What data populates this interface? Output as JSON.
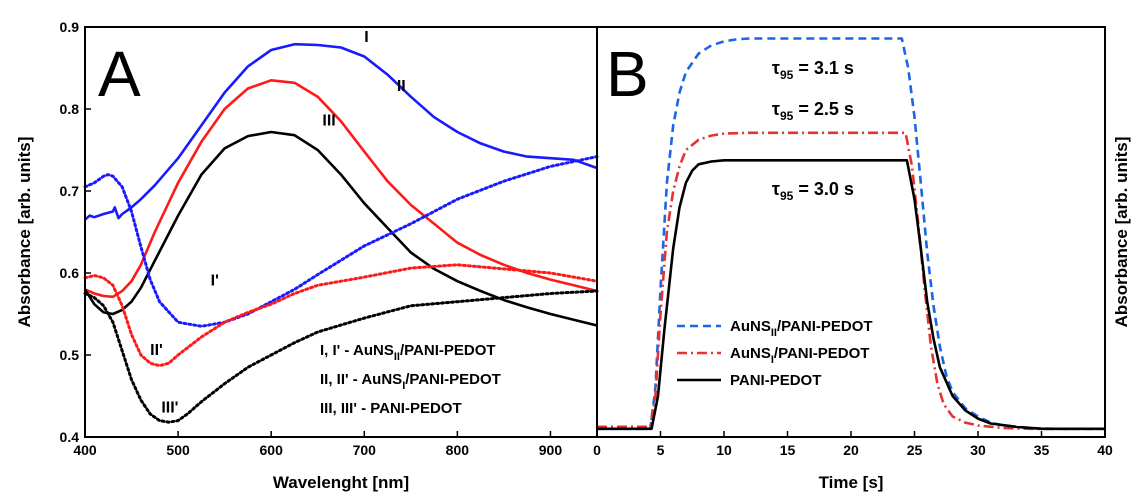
{
  "chart_data": [
    {
      "panel": "A",
      "type": "line",
      "xlabel": "Wavelenght [nm]",
      "ylabel": "Absorbance [arb. units]",
      "xlim": [
        400,
        950
      ],
      "ylim": [
        0.4,
        0.9
      ],
      "xticks": [
        400,
        500,
        600,
        700,
        800,
        900
      ],
      "yticks": [
        0.4,
        0.5,
        0.6,
        0.7,
        0.8,
        0.9
      ],
      "legend": [
        {
          "prefix": "I, I' - AuNS",
          "sub": "II",
          "suffix": "/PANI-PEDOT"
        },
        {
          "prefix": "II, II' - AuNS",
          "sub": "I",
          "suffix": "/PANI-PEDOT"
        },
        {
          "prefix": "III, III' - PANI-PEDOT",
          "sub": "",
          "suffix": ""
        }
      ],
      "series": [
        {
          "name": "I",
          "color": "#1a1aff",
          "style": "solid",
          "x": [
            400,
            405,
            410,
            420,
            430,
            432,
            436,
            440,
            450,
            460,
            475,
            500,
            525,
            550,
            575,
            600,
            625,
            650,
            675,
            700,
            725,
            750,
            775,
            800,
            825,
            850,
            875,
            900,
            925,
            950
          ],
          "y": [
            0.665,
            0.67,
            0.668,
            0.672,
            0.675,
            0.68,
            0.667,
            0.672,
            0.68,
            0.69,
            0.707,
            0.74,
            0.78,
            0.82,
            0.852,
            0.872,
            0.879,
            0.878,
            0.875,
            0.864,
            0.842,
            0.815,
            0.79,
            0.772,
            0.758,
            0.748,
            0.742,
            0.74,
            0.738,
            0.728
          ]
        },
        {
          "name": "II",
          "color": "#ff1a1a",
          "style": "solid",
          "x": [
            400,
            410,
            420,
            430,
            440,
            450,
            460,
            475,
            500,
            525,
            550,
            575,
            600,
            625,
            650,
            675,
            700,
            725,
            750,
            775,
            800,
            825,
            850,
            875,
            900,
            925,
            950
          ],
          "y": [
            0.58,
            0.575,
            0.572,
            0.571,
            0.578,
            0.59,
            0.61,
            0.65,
            0.71,
            0.76,
            0.8,
            0.825,
            0.835,
            0.832,
            0.815,
            0.785,
            0.748,
            0.712,
            0.683,
            0.66,
            0.637,
            0.622,
            0.61,
            0.6,
            0.592,
            0.585,
            0.578
          ]
        },
        {
          "name": "III",
          "color": "#000000",
          "style": "solid",
          "x": [
            400,
            410,
            420,
            430,
            440,
            450,
            460,
            475,
            500,
            525,
            550,
            575,
            600,
            625,
            650,
            675,
            700,
            725,
            750,
            775,
            800,
            825,
            850,
            875,
            900,
            925,
            950
          ],
          "y": [
            0.58,
            0.562,
            0.552,
            0.55,
            0.555,
            0.565,
            0.582,
            0.615,
            0.67,
            0.72,
            0.752,
            0.767,
            0.772,
            0.768,
            0.75,
            0.72,
            0.685,
            0.655,
            0.625,
            0.605,
            0.59,
            0.578,
            0.567,
            0.558,
            0.55,
            0.543,
            0.536
          ]
        },
        {
          "name": "I'",
          "color": "#1a1aff",
          "style": "dotted",
          "x": [
            400,
            410,
            420,
            425,
            430,
            440,
            450,
            460,
            470,
            480,
            500,
            525,
            550,
            575,
            600,
            625,
            650,
            700,
            750,
            800,
            850,
            900,
            950
          ],
          "y": [
            0.705,
            0.71,
            0.718,
            0.72,
            0.718,
            0.705,
            0.675,
            0.632,
            0.592,
            0.565,
            0.54,
            0.535,
            0.54,
            0.55,
            0.565,
            0.58,
            0.598,
            0.633,
            0.66,
            0.69,
            0.712,
            0.73,
            0.742
          ]
        },
        {
          "name": "II'",
          "color": "#ff1a1a",
          "style": "dotted",
          "x": [
            400,
            410,
            420,
            430,
            440,
            450,
            460,
            470,
            480,
            490,
            500,
            525,
            550,
            575,
            600,
            625,
            650,
            700,
            750,
            800,
            850,
            900,
            950
          ],
          "y": [
            0.594,
            0.597,
            0.594,
            0.585,
            0.56,
            0.525,
            0.5,
            0.49,
            0.487,
            0.49,
            0.5,
            0.522,
            0.54,
            0.552,
            0.562,
            0.575,
            0.585,
            0.595,
            0.606,
            0.61,
            0.605,
            0.6,
            0.59
          ]
        },
        {
          "name": "III'",
          "color": "#000000",
          "style": "dotted",
          "x": [
            400,
            410,
            420,
            430,
            440,
            450,
            460,
            470,
            480,
            490,
            500,
            510,
            525,
            550,
            575,
            600,
            625,
            650,
            700,
            750,
            800,
            850,
            900,
            950
          ],
          "y": [
            0.575,
            0.57,
            0.56,
            0.54,
            0.505,
            0.47,
            0.445,
            0.428,
            0.42,
            0.418,
            0.42,
            0.428,
            0.443,
            0.465,
            0.485,
            0.5,
            0.515,
            0.528,
            0.545,
            0.56,
            0.565,
            0.57,
            0.575,
            0.578
          ]
        }
      ],
      "curve_labels": [
        {
          "text": "I",
          "x": 700,
          "y": 0.882
        },
        {
          "text": "II",
          "x": 735,
          "y": 0.822
        },
        {
          "text": "III",
          "x": 655,
          "y": 0.78
        },
        {
          "text": "I'",
          "x": 535,
          "y": 0.585
        },
        {
          "text": "II'",
          "x": 470,
          "y": 0.5
        },
        {
          "text": "III'",
          "x": 482,
          "y": 0.43
        }
      ]
    },
    {
      "panel": "B",
      "type": "line",
      "xlabel": "Time [s]",
      "ylabel": "Absorbance [arb. units]",
      "xlim": [
        0,
        40
      ],
      "ylim": [
        0,
        1
      ],
      "xticks": [
        0,
        5,
        10,
        15,
        20,
        25,
        30,
        35,
        40
      ],
      "series": [
        {
          "name": "AuNS_II/PANI-PEDOT",
          "label_prefix": "AuNS",
          "label_sub": "II",
          "label_suffix": "/PANI-PEDOT",
          "color": "#1a66e6",
          "style": "dashed",
          "x": [
            0,
            4.2,
            4.6,
            5,
            5.5,
            6,
            6.5,
            7,
            8,
            9,
            10,
            11,
            12,
            14,
            24,
            24.5,
            25,
            25.5,
            26,
            26.5,
            27,
            27.5,
            28,
            29,
            30,
            31,
            32,
            34,
            36,
            40
          ],
          "y": [
            0.02,
            0.02,
            0.12,
            0.36,
            0.62,
            0.76,
            0.84,
            0.89,
            0.935,
            0.955,
            0.965,
            0.97,
            0.972,
            0.972,
            0.972,
            0.9,
            0.78,
            0.62,
            0.45,
            0.32,
            0.22,
            0.15,
            0.11,
            0.07,
            0.05,
            0.035,
            0.028,
            0.022,
            0.02,
            0.02
          ]
        },
        {
          "name": "AuNS_I/PANI-PEDOT",
          "label_prefix": "AuNS",
          "label_sub": "I",
          "label_suffix": "/PANI-PEDOT",
          "color": "#e63232",
          "style": "dashdot",
          "x": [
            0,
            4.2,
            4.6,
            5,
            5.5,
            6,
            6.5,
            7,
            8,
            9,
            10,
            12,
            15,
            24.3,
            24.8,
            25.3,
            25.8,
            26.3,
            26.8,
            27.3,
            28,
            29,
            30,
            32,
            34,
            40
          ],
          "y": [
            0.025,
            0.025,
            0.1,
            0.3,
            0.5,
            0.6,
            0.66,
            0.7,
            0.725,
            0.735,
            0.74,
            0.742,
            0.742,
            0.742,
            0.66,
            0.52,
            0.36,
            0.22,
            0.13,
            0.08,
            0.05,
            0.035,
            0.028,
            0.022,
            0.02,
            0.02
          ]
        },
        {
          "name": "PANI-PEDOT",
          "label_prefix": "PANI-PEDOT",
          "label_sub": "",
          "label_suffix": "",
          "color": "#000000",
          "style": "solid",
          "x": [
            0,
            4.3,
            4.8,
            5.3,
            6,
            6.5,
            7,
            7.5,
            8,
            9,
            10,
            12,
            15,
            24.4,
            25,
            25.5,
            26,
            26.5,
            27,
            28,
            29,
            30,
            31,
            33,
            35,
            40
          ],
          "y": [
            0.02,
            0.02,
            0.1,
            0.26,
            0.46,
            0.56,
            0.62,
            0.65,
            0.665,
            0.672,
            0.675,
            0.675,
            0.675,
            0.675,
            0.58,
            0.46,
            0.33,
            0.24,
            0.17,
            0.1,
            0.065,
            0.045,
            0.033,
            0.025,
            0.02,
            0.02
          ]
        }
      ],
      "annotations": [
        {
          "symbol": "τ",
          "sub": "95",
          "text": " = 3.1 s",
          "x": 17,
          "y": 0.885
        },
        {
          "symbol": "τ",
          "sub": "95",
          "text": " = 2.5 s",
          "x": 17,
          "y": 0.785
        },
        {
          "symbol": "τ",
          "sub": "95",
          "text": " = 3.0 s",
          "x": 17,
          "y": 0.59
        }
      ]
    }
  ],
  "panel_letters": {
    "a": "A",
    "b": "B"
  }
}
